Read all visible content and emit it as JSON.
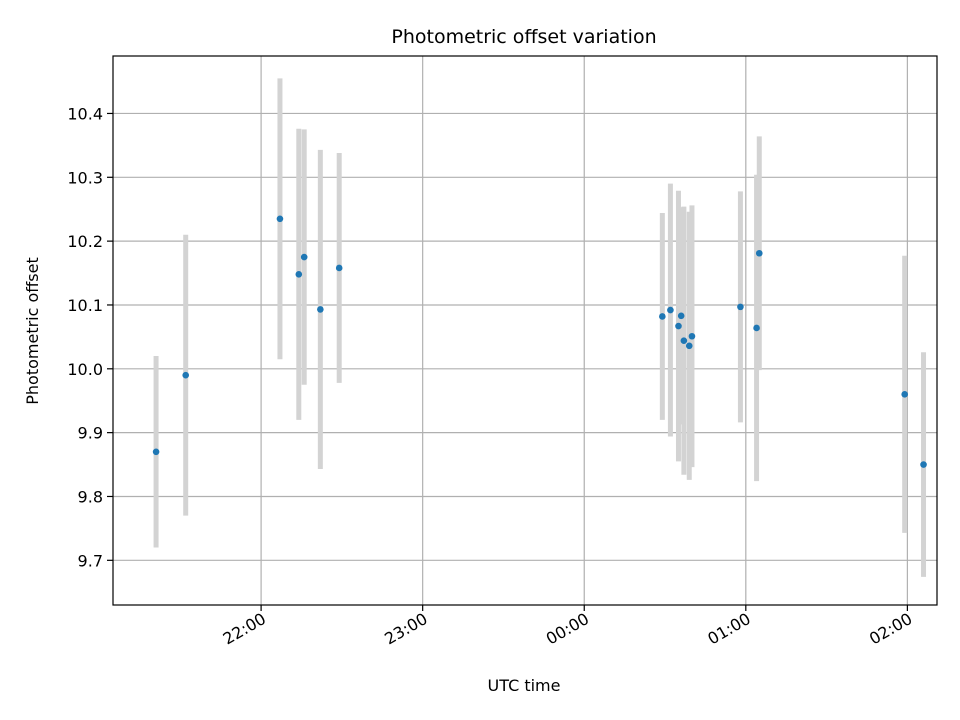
{
  "chart_data": {
    "type": "scatter",
    "title": "Photometric offset variation",
    "xlabel": "UTC time",
    "ylabel": "Photometric offset",
    "grid": true,
    "x_ticks": [
      "22:00",
      "23:00",
      "00:00",
      "01:00",
      "02:00"
    ],
    "y_ticks": [
      "9.7",
      "9.8",
      "9.9",
      "10.0",
      "10.1",
      "10.2",
      "10.3",
      "10.4"
    ],
    "xlim": [
      "21:05",
      "02:11"
    ],
    "ylim": [
      9.63,
      10.49
    ],
    "colors": {
      "points": "#1f77b4",
      "errorbars": "#d3d3d3",
      "grid": "#b0b0b0"
    },
    "series": [
      {
        "points": [
          {
            "x": "21:21",
            "y": 9.87,
            "err": 0.15
          },
          {
            "x": "21:32",
            "y": 9.99,
            "err": 0.22
          },
          {
            "x": "22:07",
            "y": 10.235,
            "err": 0.22
          },
          {
            "x": "22:14",
            "y": 10.148,
            "err": 0.228
          },
          {
            "x": "22:16",
            "y": 10.175,
            "err": 0.2
          },
          {
            "x": "22:22",
            "y": 10.093,
            "err": 0.25
          },
          {
            "x": "22:29",
            "y": 10.158,
            "err": 0.18
          },
          {
            "x": "00:29",
            "y": 10.082,
            "err": 0.162
          },
          {
            "x": "00:32",
            "y": 10.092,
            "err": 0.198
          },
          {
            "x": "00:35",
            "y": 10.067,
            "err": 0.212
          },
          {
            "x": "00:36",
            "y": 10.083,
            "err": 0.17
          },
          {
            "x": "00:37",
            "y": 10.044,
            "err": 0.21
          },
          {
            "x": "00:39",
            "y": 10.036,
            "err": 0.21
          },
          {
            "x": "00:40",
            "y": 10.051,
            "err": 0.205
          },
          {
            "x": "00:58",
            "y": 10.097,
            "err": 0.181
          },
          {
            "x": "01:04",
            "y": 10.064,
            "err": 0.24
          },
          {
            "x": "01:05",
            "y": 10.181,
            "err": 0.183
          },
          {
            "x": "01:59",
            "y": 9.96,
            "err": 0.217
          },
          {
            "x": "02:06",
            "y": 9.85,
            "err": 0.176
          }
        ]
      }
    ]
  }
}
